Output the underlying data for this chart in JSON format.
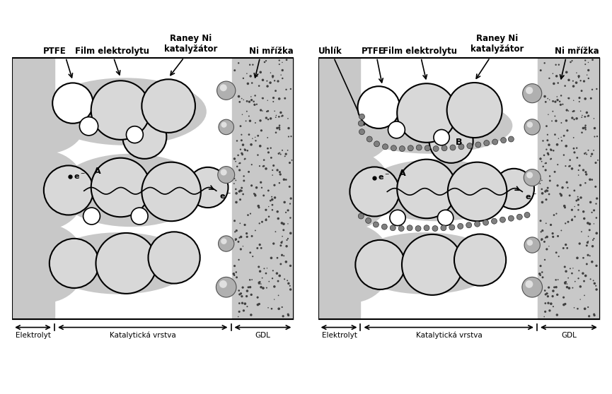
{
  "fig_width": 8.65,
  "fig_height": 5.58,
  "bg_color": "#ffffff",
  "gray_light": "#c8c8c8",
  "gray_medium": "#a0a0a0",
  "gray_dark": "#808080",
  "gray_electrolyte": "#d0d0d0",
  "gdl_gray": "#b0b0b0",
  "ptfe_white": "#ffffff",
  "title_left": "Film elektrolytu",
  "title_raney": "Raney Ni\nkatalyžátor",
  "title_nimrizka": "Ni mřížka",
  "title_ptfe": "PTFE",
  "title_uhlik": "Uhlík",
  "label_elektrolyt": "Elektrolyt",
  "label_katalyticka": "Katalytická vrstva",
  "label_gdl": "GDL"
}
